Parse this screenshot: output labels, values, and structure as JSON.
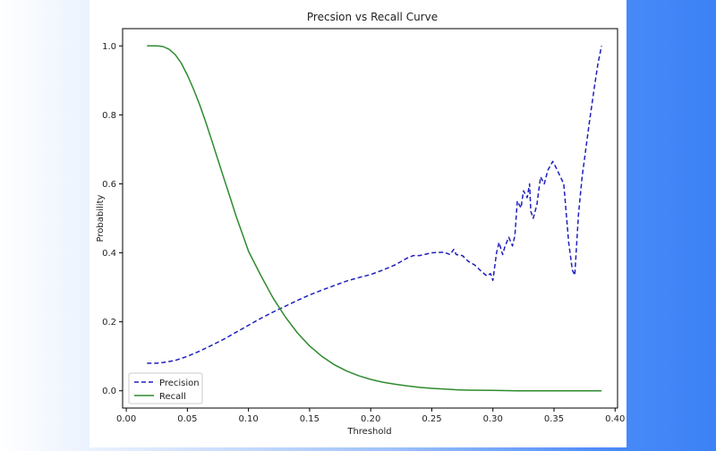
{
  "chart_data": {
    "type": "line",
    "title": "Precsion vs Recall Curve",
    "xlabel": "Threshold",
    "ylabel": "Probability",
    "xlim": [
      -0.003,
      0.402
    ],
    "ylim": [
      -0.05,
      1.05
    ],
    "xticks": [
      "0.00",
      "0.05",
      "0.10",
      "0.15",
      "0.20",
      "0.25",
      "0.30",
      "0.35",
      "0.40"
    ],
    "yticks": [
      "0.0",
      "0.2",
      "0.4",
      "0.6",
      "0.8",
      "1.0"
    ],
    "grid": false,
    "legend_position": "lower-left",
    "series": [
      {
        "name": "Precision",
        "color": "#1f1fbf",
        "style": "dashed",
        "x": [
          0.017,
          0.025,
          0.03,
          0.04,
          0.05,
          0.06,
          0.07,
          0.08,
          0.09,
          0.1,
          0.11,
          0.12,
          0.13,
          0.14,
          0.15,
          0.16,
          0.17,
          0.18,
          0.19,
          0.2,
          0.21,
          0.22,
          0.23,
          0.235,
          0.24,
          0.25,
          0.26,
          0.265,
          0.268,
          0.27,
          0.275,
          0.28,
          0.285,
          0.29,
          0.295,
          0.298,
          0.3,
          0.303,
          0.305,
          0.308,
          0.31,
          0.313,
          0.316,
          0.318,
          0.32,
          0.323,
          0.325,
          0.328,
          0.33,
          0.331,
          0.333,
          0.336,
          0.339,
          0.342,
          0.345,
          0.349,
          0.352,
          0.358,
          0.362,
          0.365,
          0.367,
          0.37,
          0.373,
          0.376,
          0.379,
          0.383,
          0.386,
          0.389
        ],
        "y": [
          0.08,
          0.08,
          0.082,
          0.088,
          0.1,
          0.115,
          0.132,
          0.15,
          0.17,
          0.19,
          0.21,
          0.228,
          0.245,
          0.262,
          0.278,
          0.292,
          0.305,
          0.318,
          0.328,
          0.337,
          0.35,
          0.365,
          0.385,
          0.392,
          0.392,
          0.4,
          0.402,
          0.395,
          0.41,
          0.395,
          0.392,
          0.375,
          0.365,
          0.348,
          0.333,
          0.34,
          0.32,
          0.4,
          0.43,
          0.395,
          0.42,
          0.445,
          0.42,
          0.45,
          0.55,
          0.53,
          0.58,
          0.56,
          0.6,
          0.52,
          0.5,
          0.54,
          0.62,
          0.6,
          0.64,
          0.665,
          0.645,
          0.6,
          0.43,
          0.35,
          0.335,
          0.51,
          0.62,
          0.7,
          0.78,
          0.88,
          0.95,
          1.0
        ]
      },
      {
        "name": "Recall",
        "color": "#2e8b2e",
        "style": "solid",
        "x": [
          0.017,
          0.025,
          0.03,
          0.035,
          0.04,
          0.045,
          0.05,
          0.055,
          0.06,
          0.065,
          0.07,
          0.075,
          0.08,
          0.085,
          0.09,
          0.095,
          0.1,
          0.11,
          0.12,
          0.13,
          0.14,
          0.15,
          0.16,
          0.17,
          0.18,
          0.19,
          0.2,
          0.21,
          0.22,
          0.23,
          0.24,
          0.25,
          0.26,
          0.27,
          0.28,
          0.3,
          0.32,
          0.34,
          0.36,
          0.389
        ],
        "y": [
          1.0,
          1.0,
          0.998,
          0.99,
          0.975,
          0.95,
          0.915,
          0.875,
          0.83,
          0.78,
          0.725,
          0.67,
          0.615,
          0.56,
          0.505,
          0.455,
          0.405,
          0.335,
          0.27,
          0.215,
          0.168,
          0.13,
          0.1,
          0.076,
          0.058,
          0.044,
          0.033,
          0.025,
          0.019,
          0.014,
          0.01,
          0.007,
          0.005,
          0.003,
          0.002,
          0.001,
          0.0,
          0.0,
          0.0,
          0.0
        ]
      }
    ]
  }
}
